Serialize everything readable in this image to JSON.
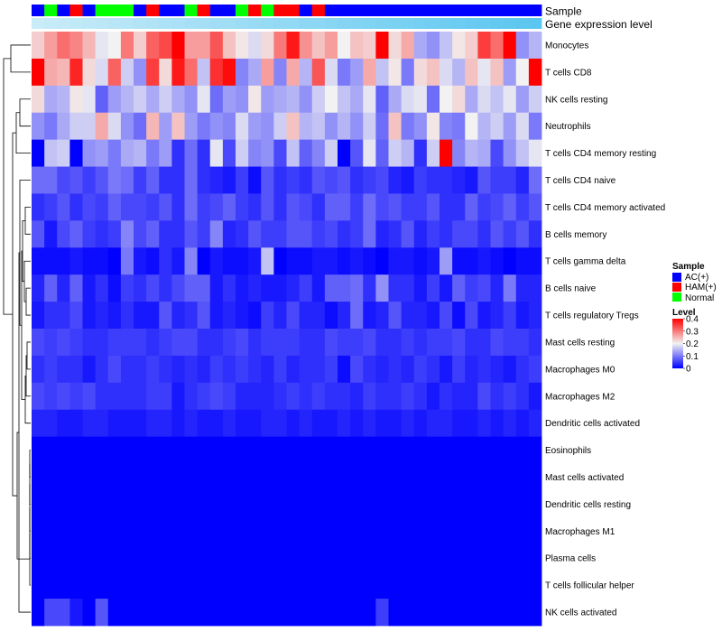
{
  "chart_data": {
    "type": "heatmap",
    "title": "",
    "n_samples": 40,
    "annotations": [
      {
        "name": "Sample"
      },
      {
        "name": "Gene expression level"
      }
    ],
    "sample_groups": [
      "AC",
      "N",
      "AC",
      "H",
      "AC",
      "N",
      "N",
      "N",
      "AC",
      "H",
      "AC",
      "AC",
      "N",
      "H",
      "AC",
      "AC",
      "N",
      "H",
      "N",
      "H",
      "H",
      "AC",
      "H",
      "AC",
      "AC",
      "AC",
      "AC",
      "AC",
      "AC",
      "AC",
      "AC",
      "AC",
      "AC",
      "AC",
      "AC",
      "AC",
      "AC",
      "AC",
      "AC",
      "AC"
    ],
    "gene_expression_level": [
      0.0,
      0.03,
      0.05,
      0.08,
      0.1,
      0.13,
      0.15,
      0.18,
      0.21,
      0.23,
      0.26,
      0.28,
      0.31,
      0.33,
      0.36,
      0.38,
      0.41,
      0.44,
      0.46,
      0.49,
      0.51,
      0.54,
      0.56,
      0.59,
      0.62,
      0.64,
      0.67,
      0.69,
      0.72,
      0.74,
      0.77,
      0.79,
      0.82,
      0.85,
      0.87,
      0.9,
      0.92,
      0.95,
      0.97,
      1.0
    ],
    "rows": [
      "Monocytes",
      "T cells CD8",
      "NK cells resting",
      "Neutrophils",
      "T cells CD4 memory resting",
      "T cells CD4 naive",
      "T cells CD4 memory activated",
      "B cells memory",
      "T cells gamma delta",
      "B cells naive",
      "T cells regulatory  Tregs",
      "Mast cells resting",
      "Macrophages M0",
      "Macrophages M2",
      "Dendritic cells activated",
      "Eosinophils",
      "Mast cells activated",
      "Dendritic cells resting",
      "Macrophages M1",
      "Plasma cells",
      "T cells follicular helper",
      "NK cells activated"
    ],
    "values": [
      [
        0.23,
        0.27,
        0.31,
        0.29,
        0.25,
        0.19,
        0.2,
        0.3,
        0.23,
        0.32,
        0.34,
        0.4,
        0.27,
        0.27,
        0.33,
        0.24,
        0.21,
        0.18,
        0.22,
        0.3,
        0.38,
        0.28,
        0.24,
        0.27,
        0.2,
        0.24,
        0.23,
        0.4,
        0.22,
        0.26,
        0.14,
        0.12,
        0.16,
        0.21,
        0.23,
        0.35,
        0.31,
        0.4,
        0.12,
        0.15
      ],
      [
        0.4,
        0.26,
        0.25,
        0.37,
        0.22,
        0.18,
        0.32,
        0.17,
        0.12,
        0.35,
        0.22,
        0.38,
        0.31,
        0.16,
        0.36,
        0.39,
        0.11,
        0.14,
        0.27,
        0.11,
        0.26,
        0.15,
        0.33,
        0.18,
        0.1,
        0.13,
        0.26,
        0.16,
        0.21,
        0.1,
        0.22,
        0.24,
        0.18,
        0.15,
        0.24,
        0.19,
        0.24,
        0.13,
        0.2,
        0.4
      ],
      [
        0.22,
        0.14,
        0.15,
        0.21,
        0.19,
        0.08,
        0.13,
        0.15,
        0.17,
        0.14,
        0.17,
        0.14,
        0.12,
        0.19,
        0.09,
        0.13,
        0.12,
        0.21,
        0.13,
        0.14,
        0.15,
        0.12,
        0.17,
        0.2,
        0.16,
        0.14,
        0.19,
        0.08,
        0.14,
        0.18,
        0.19,
        0.09,
        0.2,
        0.22,
        0.14,
        0.18,
        0.16,
        0.19,
        0.13,
        0.17
      ],
      [
        0.12,
        0.1,
        0.14,
        0.17,
        0.17,
        0.26,
        0.18,
        0.12,
        0.09,
        0.25,
        0.13,
        0.24,
        0.13,
        0.1,
        0.12,
        0.11,
        0.18,
        0.13,
        0.12,
        0.17,
        0.24,
        0.15,
        0.16,
        0.12,
        0.15,
        0.12,
        0.17,
        0.09,
        0.24,
        0.1,
        0.12,
        0.21,
        0.11,
        0.1,
        0.2,
        0.15,
        0.17,
        0.13,
        0.18,
        0.1
      ],
      [
        0.0,
        0.16,
        0.17,
        0.0,
        0.12,
        0.13,
        0.1,
        0.14,
        0.15,
        0.1,
        0.13,
        0.04,
        0.09,
        0.04,
        0.19,
        0.06,
        0.17,
        0.11,
        0.12,
        0.06,
        0.16,
        0.08,
        0.11,
        0.17,
        0.0,
        0.07,
        0.19,
        0.08,
        0.17,
        0.15,
        0.04,
        0.17,
        0.4,
        0.11,
        0.15,
        0.14,
        0.06,
        0.12,
        0.16,
        0.19
      ],
      [
        0.09,
        0.09,
        0.06,
        0.07,
        0.05,
        0.07,
        0.1,
        0.09,
        0.05,
        0.08,
        0.04,
        0.04,
        0.09,
        0.04,
        0.03,
        0.02,
        0.05,
        0.01,
        0.07,
        0.04,
        0.05,
        0.04,
        0.07,
        0.06,
        0.07,
        0.04,
        0.05,
        0.06,
        0.03,
        0.02,
        0.05,
        0.04,
        0.04,
        0.03,
        0.02,
        0.07,
        0.05,
        0.05,
        0.03,
        0.09
      ],
      [
        0.04,
        0.05,
        0.07,
        0.04,
        0.06,
        0.05,
        0.08,
        0.06,
        0.06,
        0.05,
        0.07,
        0.04,
        0.09,
        0.05,
        0.06,
        0.08,
        0.05,
        0.04,
        0.07,
        0.04,
        0.07,
        0.06,
        0.04,
        0.08,
        0.08,
        0.05,
        0.09,
        0.06,
        0.07,
        0.05,
        0.05,
        0.07,
        0.04,
        0.04,
        0.08,
        0.05,
        0.06,
        0.08,
        0.05,
        0.07
      ],
      [
        0.07,
        0.02,
        0.06,
        0.08,
        0.05,
        0.04,
        0.05,
        0.11,
        0.06,
        0.08,
        0.04,
        0.04,
        0.07,
        0.05,
        0.11,
        0.03,
        0.04,
        0.07,
        0.05,
        0.05,
        0.07,
        0.07,
        0.05,
        0.06,
        0.04,
        0.05,
        0.09,
        0.03,
        0.04,
        0.07,
        0.03,
        0.05,
        0.04,
        0.06,
        0.06,
        0.04,
        0.07,
        0.05,
        0.07,
        0.04
      ],
      [
        0.01,
        0.01,
        0.01,
        0.02,
        0.01,
        0.01,
        0.0,
        0.1,
        0.02,
        0.01,
        0.04,
        0.02,
        0.11,
        0.0,
        0.02,
        0.01,
        0.01,
        0.02,
        0.16,
        0.0,
        0.01,
        0.01,
        0.02,
        0.02,
        0.01,
        0.02,
        0.01,
        0.0,
        0.02,
        0.02,
        0.01,
        0.02,
        0.13,
        0.01,
        0.01,
        0.02,
        0.01,
        0.0,
        0.01,
        0.01
      ],
      [
        0.03,
        0.08,
        0.03,
        0.08,
        0.02,
        0.04,
        0.01,
        0.05,
        0.04,
        0.06,
        0.04,
        0.06,
        0.08,
        0.08,
        0.02,
        0.04,
        0.02,
        0.03,
        0.02,
        0.02,
        0.03,
        0.05,
        0.02,
        0.08,
        0.08,
        0.09,
        0.04,
        0.12,
        0.04,
        0.04,
        0.02,
        0.05,
        0.02,
        0.08,
        0.05,
        0.06,
        0.03,
        0.1,
        0.03,
        0.03
      ],
      [
        0.02,
        0.04,
        0.04,
        0.06,
        0.02,
        0.03,
        0.02,
        0.04,
        0.02,
        0.02,
        0.07,
        0.03,
        0.04,
        0.07,
        0.02,
        0.03,
        0.02,
        0.01,
        0.05,
        0.03,
        0.06,
        0.03,
        0.03,
        0.01,
        0.03,
        0.09,
        0.02,
        0.03,
        0.07,
        0.03,
        0.03,
        0.02,
        0.06,
        0.01,
        0.06,
        0.02,
        0.03,
        0.05,
        0.02,
        0.03
      ],
      [
        0.06,
        0.05,
        0.06,
        0.05,
        0.04,
        0.04,
        0.05,
        0.05,
        0.05,
        0.04,
        0.05,
        0.06,
        0.06,
        0.04,
        0.04,
        0.05,
        0.06,
        0.04,
        0.05,
        0.05,
        0.05,
        0.04,
        0.04,
        0.06,
        0.05,
        0.05,
        0.06,
        0.04,
        0.04,
        0.05,
        0.04,
        0.05,
        0.05,
        0.06,
        0.04,
        0.04,
        0.06,
        0.05,
        0.05,
        0.04
      ],
      [
        0.04,
        0.05,
        0.04,
        0.04,
        0.02,
        0.04,
        0.06,
        0.04,
        0.04,
        0.05,
        0.04,
        0.03,
        0.04,
        0.03,
        0.05,
        0.04,
        0.05,
        0.04,
        0.03,
        0.05,
        0.03,
        0.04,
        0.04,
        0.05,
        0.01,
        0.06,
        0.04,
        0.03,
        0.04,
        0.03,
        0.05,
        0.04,
        0.02,
        0.05,
        0.03,
        0.04,
        0.03,
        0.02,
        0.04,
        0.05
      ],
      [
        0.06,
        0.05,
        0.06,
        0.05,
        0.06,
        0.04,
        0.04,
        0.04,
        0.04,
        0.05,
        0.05,
        0.02,
        0.04,
        0.05,
        0.06,
        0.05,
        0.03,
        0.03,
        0.03,
        0.04,
        0.05,
        0.04,
        0.05,
        0.04,
        0.04,
        0.03,
        0.05,
        0.04,
        0.04,
        0.05,
        0.04,
        0.02,
        0.04,
        0.03,
        0.03,
        0.06,
        0.04,
        0.05,
        0.04,
        0.02
      ],
      [
        0.03,
        0.03,
        0.02,
        0.02,
        0.03,
        0.03,
        0.02,
        0.02,
        0.02,
        0.03,
        0.03,
        0.02,
        0.03,
        0.02,
        0.02,
        0.03,
        0.02,
        0.02,
        0.03,
        0.03,
        0.02,
        0.03,
        0.02,
        0.02,
        0.03,
        0.02,
        0.03,
        0.02,
        0.02,
        0.03,
        0.02,
        0.03,
        0.03,
        0.02,
        0.02,
        0.03,
        0.02,
        0.03,
        0.02,
        0.03
      ],
      [
        0.0,
        0.0,
        0.0,
        0.0,
        0.0,
        0.0,
        0.0,
        0.0,
        0.0,
        0.0,
        0.0,
        0.0,
        0.0,
        0.0,
        0.0,
        0.0,
        0.0,
        0.0,
        0.0,
        0.0,
        0.0,
        0.0,
        0.0,
        0.0,
        0.0,
        0.0,
        0.0,
        0.0,
        0.0,
        0.0,
        0.0,
        0.0,
        0.0,
        0.0,
        0.0,
        0.0,
        0.0,
        0.0,
        0.0,
        0.0
      ],
      [
        0.0,
        0.0,
        0.0,
        0.0,
        0.0,
        0.0,
        0.0,
        0.0,
        0.0,
        0.0,
        0.0,
        0.0,
        0.0,
        0.0,
        0.0,
        0.0,
        0.0,
        0.0,
        0.0,
        0.0,
        0.0,
        0.0,
        0.0,
        0.0,
        0.0,
        0.0,
        0.0,
        0.0,
        0.0,
        0.0,
        0.0,
        0.0,
        0.0,
        0.0,
        0.0,
        0.0,
        0.0,
        0.0,
        0.0,
        0.0
      ],
      [
        0.0,
        0.0,
        0.0,
        0.0,
        0.0,
        0.0,
        0.0,
        0.0,
        0.0,
        0.0,
        0.0,
        0.0,
        0.0,
        0.0,
        0.0,
        0.0,
        0.0,
        0.0,
        0.0,
        0.0,
        0.0,
        0.0,
        0.0,
        0.0,
        0.0,
        0.0,
        0.0,
        0.0,
        0.0,
        0.0,
        0.0,
        0.0,
        0.0,
        0.0,
        0.0,
        0.0,
        0.0,
        0.0,
        0.0,
        0.0
      ],
      [
        0.0,
        0.0,
        0.0,
        0.0,
        0.0,
        0.0,
        0.0,
        0.0,
        0.0,
        0.0,
        0.0,
        0.0,
        0.0,
        0.0,
        0.0,
        0.0,
        0.0,
        0.0,
        0.0,
        0.0,
        0.0,
        0.0,
        0.0,
        0.0,
        0.0,
        0.0,
        0.0,
        0.0,
        0.0,
        0.0,
        0.0,
        0.0,
        0.0,
        0.0,
        0.0,
        0.0,
        0.0,
        0.0,
        0.0,
        0.0
      ],
      [
        0.0,
        0.0,
        0.0,
        0.0,
        0.0,
        0.0,
        0.0,
        0.0,
        0.0,
        0.0,
        0.0,
        0.0,
        0.0,
        0.0,
        0.0,
        0.0,
        0.0,
        0.0,
        0.0,
        0.0,
        0.0,
        0.0,
        0.0,
        0.0,
        0.0,
        0.0,
        0.0,
        0.0,
        0.0,
        0.0,
        0.0,
        0.0,
        0.0,
        0.0,
        0.0,
        0.0,
        0.0,
        0.0,
        0.0,
        0.0
      ],
      [
        0.0,
        0.0,
        0.0,
        0.0,
        0.0,
        0.0,
        0.0,
        0.0,
        0.0,
        0.0,
        0.0,
        0.0,
        0.0,
        0.0,
        0.0,
        0.0,
        0.0,
        0.0,
        0.0,
        0.0,
        0.0,
        0.0,
        0.0,
        0.0,
        0.0,
        0.0,
        0.0,
        0.0,
        0.0,
        0.0,
        0.0,
        0.0,
        0.0,
        0.0,
        0.0,
        0.0,
        0.0,
        0.0,
        0.0,
        0.0
      ],
      [
        0.0,
        0.06,
        0.06,
        0.02,
        0.0,
        0.07,
        0.0,
        0.0,
        0.0,
        0.0,
        0.0,
        0.0,
        0.0,
        0.0,
        0.0,
        0.0,
        0.0,
        0.0,
        0.0,
        0.0,
        0.0,
        0.0,
        0.0,
        0.0,
        0.0,
        0.0,
        0.0,
        0.05,
        0.0,
        0.0,
        0.0,
        0.0,
        0.0,
        0.0,
        0.0,
        0.0,
        0.0,
        0.0,
        0.0,
        0.0
      ]
    ],
    "color_scale": {
      "min": 0,
      "max": 0.4,
      "low": "#0000ff",
      "mid": "#f2f2f2",
      "high": "#ff0000",
      "midpoint": 0.2
    },
    "sample_legend": {
      "title": "Sample",
      "entries": [
        {
          "key": "AC",
          "label": "AC(+)",
          "color": "#0000ff"
        },
        {
          "key": "H",
          "label": "HAM(+)",
          "color": "#ff0000"
        },
        {
          "key": "N",
          "label": "Normal",
          "color": "#00ff00"
        }
      ]
    },
    "level_legend": {
      "title": "Level",
      "ticks": [
        0.4,
        0.3,
        0.2,
        0.1,
        0
      ],
      "tick_labels": [
        "0.4",
        "0.3",
        "0.2",
        "0.1",
        "0"
      ]
    },
    "gene_level_colors": {
      "low": "#c9ecf8",
      "high": "#5bc6f0"
    },
    "xlabel": "",
    "ylabel": ""
  }
}
